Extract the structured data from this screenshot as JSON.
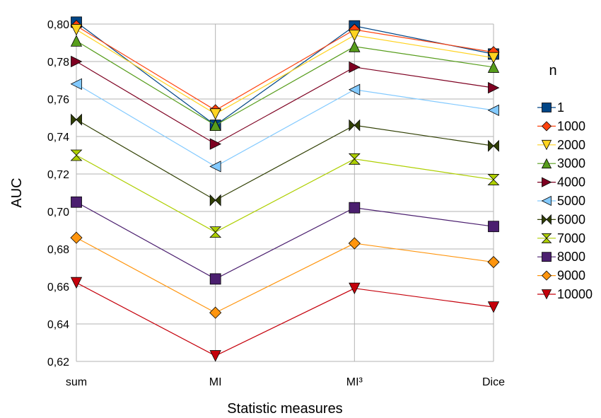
{
  "chart_data": {
    "type": "line",
    "title": "",
    "xlabel": "Statistic measures",
    "ylabel": "AUC",
    "categories": [
      "sum",
      "MI",
      "MI³",
      "Dice"
    ],
    "ylim": [
      0.62,
      0.81
    ],
    "yticks": [
      "0,62",
      "0,64",
      "0,66",
      "0,68",
      "0,70",
      "0,72",
      "0,74",
      "0,76",
      "0,78",
      "0,80"
    ],
    "grid": "horizontal and vertical",
    "legend_title": "n",
    "legend_position": "right",
    "series": [
      {
        "name": "1",
        "color": "#004586",
        "marker": "square",
        "values": [
          0.801,
          0.746,
          0.799,
          0.784
        ]
      },
      {
        "name": "1000",
        "color": "#ff420e",
        "marker": "diamond",
        "values": [
          0.799,
          0.754,
          0.797,
          0.785
        ]
      },
      {
        "name": "2000",
        "color": "#ffd320",
        "marker": "triangle-down",
        "values": [
          0.797,
          0.752,
          0.794,
          0.782
        ]
      },
      {
        "name": "3000",
        "color": "#579d1c",
        "marker": "triangle-up",
        "values": [
          0.791,
          0.746,
          0.788,
          0.777
        ]
      },
      {
        "name": "4000",
        "color": "#7e0021",
        "marker": "triangle-right",
        "values": [
          0.78,
          0.736,
          0.777,
          0.766
        ]
      },
      {
        "name": "5000",
        "color": "#83caff",
        "marker": "triangle-left",
        "values": [
          0.768,
          0.724,
          0.765,
          0.754
        ]
      },
      {
        "name": "6000",
        "color": "#314004",
        "marker": "bowtie",
        "values": [
          0.749,
          0.706,
          0.746,
          0.735
        ]
      },
      {
        "name": "7000",
        "color": "#aecf00",
        "marker": "hourglass",
        "values": [
          0.73,
          0.689,
          0.728,
          0.717
        ]
      },
      {
        "name": "8000",
        "color": "#4b1f6f",
        "marker": "square",
        "values": [
          0.705,
          0.664,
          0.702,
          0.692
        ]
      },
      {
        "name": "9000",
        "color": "#ff950e",
        "marker": "diamond",
        "values": [
          0.686,
          0.646,
          0.683,
          0.673
        ]
      },
      {
        "name": "10000",
        "color": "#c5000b",
        "marker": "triangle-down",
        "values": [
          0.662,
          0.623,
          0.659,
          0.649
        ]
      }
    ]
  }
}
